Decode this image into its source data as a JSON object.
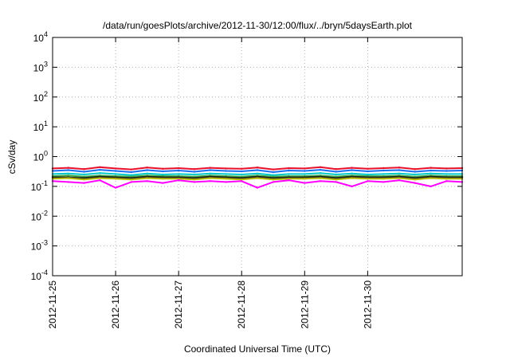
{
  "chart_data": {
    "type": "line",
    "title": "/data/run/goesPlots/archive/2012-11-30/12:00/flux/../bryn/5daysEarth.plot",
    "xlabel": "Coordinated Universal Time (UTC)",
    "ylabel": "cSv/day",
    "yscale": "log",
    "ylim": [
      0.0001,
      10000
    ],
    "xlim": [
      "2012-11-25T00:00",
      "2012-12-01T12:00"
    ],
    "grid": true,
    "legend": "none",
    "x_ticks": [
      "2012-11-25",
      "2012-11-26",
      "2012-11-27",
      "2012-11-28",
      "2012-11-29",
      "2012-11-30"
    ],
    "y_ticks": [
      {
        "base": "10",
        "exp": "-4",
        "value": 0.0001
      },
      {
        "base": "10",
        "exp": "-3",
        "value": 0.001
      },
      {
        "base": "10",
        "exp": "-2",
        "value": 0.01
      },
      {
        "base": "10",
        "exp": "-1",
        "value": 0.1
      },
      {
        "base": "10",
        "exp": "0",
        "value": 1
      },
      {
        "base": "10",
        "exp": "1",
        "value": 10
      },
      {
        "base": "10",
        "exp": "2",
        "value": 100
      },
      {
        "base": "10",
        "exp": "3",
        "value": 1000
      },
      {
        "base": "10",
        "exp": "4",
        "value": 10000
      }
    ],
    "x": [
      "2012-11-25T00:00",
      "2012-11-25T06:00",
      "2012-11-25T12:00",
      "2012-11-25T18:00",
      "2012-11-26T00:00",
      "2012-11-26T06:00",
      "2012-11-26T12:00",
      "2012-11-26T18:00",
      "2012-11-27T00:00",
      "2012-11-27T06:00",
      "2012-11-27T12:00",
      "2012-11-27T18:00",
      "2012-11-28T00:00",
      "2012-11-28T06:00",
      "2012-11-28T12:00",
      "2012-11-28T18:00",
      "2012-11-29T00:00",
      "2012-11-29T06:00",
      "2012-11-29T12:00",
      "2012-11-29T18:00",
      "2012-11-30T00:00",
      "2012-11-30T06:00",
      "2012-11-30T12:00",
      "2012-11-30T18:00",
      "2012-12-01T00:00",
      "2012-12-01T06:00",
      "2012-12-01T12:00"
    ],
    "series": [
      {
        "color": "#e8102a",
        "values": [
          0.4,
          0.42,
          0.38,
          0.44,
          0.4,
          0.37,
          0.43,
          0.39,
          0.41,
          0.38,
          0.42,
          0.4,
          0.39,
          0.43,
          0.37,
          0.41,
          0.4,
          0.44,
          0.38,
          0.42,
          0.39,
          0.41,
          0.43,
          0.38,
          0.42,
          0.4,
          0.41
        ]
      },
      {
        "color": "#1a6ef0",
        "values": [
          0.33,
          0.35,
          0.31,
          0.36,
          0.33,
          0.3,
          0.35,
          0.32,
          0.34,
          0.31,
          0.35,
          0.33,
          0.32,
          0.35,
          0.3,
          0.34,
          0.33,
          0.36,
          0.31,
          0.35,
          0.32,
          0.34,
          0.35,
          0.31,
          0.34,
          0.33,
          0.34
        ]
      },
      {
        "color": "#00c8c8",
        "values": [
          0.26,
          0.27,
          0.25,
          0.28,
          0.26,
          0.24,
          0.27,
          0.25,
          0.26,
          0.25,
          0.27,
          0.26,
          0.25,
          0.27,
          0.24,
          0.26,
          0.26,
          0.28,
          0.25,
          0.27,
          0.25,
          0.26,
          0.27,
          0.25,
          0.27,
          0.26,
          0.26
        ]
      },
      {
        "color": "#3aa03a",
        "values": [
          0.22,
          0.23,
          0.21,
          0.23,
          0.22,
          0.21,
          0.23,
          0.22,
          0.22,
          0.21,
          0.23,
          0.22,
          0.21,
          0.23,
          0.21,
          0.22,
          0.22,
          0.23,
          0.21,
          0.23,
          0.22,
          0.22,
          0.23,
          0.21,
          0.23,
          0.22,
          0.22
        ]
      },
      {
        "color": "#202020",
        "values": [
          0.2,
          0.2,
          0.19,
          0.21,
          0.2,
          0.19,
          0.21,
          0.2,
          0.2,
          0.19,
          0.21,
          0.2,
          0.19,
          0.21,
          0.19,
          0.2,
          0.2,
          0.21,
          0.19,
          0.21,
          0.2,
          0.2,
          0.21,
          0.19,
          0.21,
          0.2,
          0.2
        ]
      },
      {
        "color": "#b5b500",
        "values": [
          0.18,
          0.19,
          0.17,
          0.19,
          0.18,
          0.17,
          0.19,
          0.18,
          0.18,
          0.17,
          0.19,
          0.18,
          0.17,
          0.19,
          0.17,
          0.18,
          0.18,
          0.19,
          0.17,
          0.19,
          0.18,
          0.18,
          0.19,
          0.17,
          0.19,
          0.18,
          0.18
        ]
      },
      {
        "color": "#ff00ff",
        "values": [
          0.15,
          0.14,
          0.13,
          0.16,
          0.09,
          0.14,
          0.15,
          0.13,
          0.16,
          0.14,
          0.15,
          0.14,
          0.15,
          0.09,
          0.14,
          0.16,
          0.13,
          0.15,
          0.14,
          0.1,
          0.15,
          0.14,
          0.16,
          0.13,
          0.1,
          0.15,
          0.14
        ]
      }
    ]
  }
}
